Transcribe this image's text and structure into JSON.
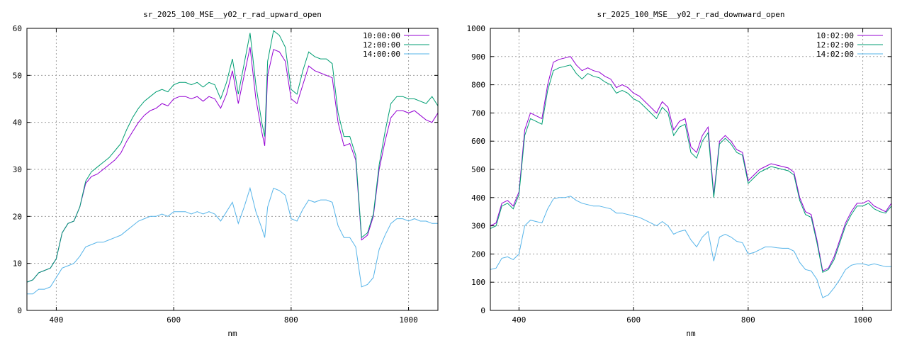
{
  "chart_data": [
    {
      "type": "line",
      "title": "sr_2025_100_MSE__y02_r_rad_upward_open",
      "xlabel": "nm",
      "ylabel": "",
      "xlim": [
        350,
        1050
      ],
      "ylim": [
        0,
        60
      ],
      "xticks": [
        400,
        600,
        800,
        1000
      ],
      "yticks": [
        0,
        10,
        20,
        30,
        40,
        50,
        60
      ],
      "grid": true,
      "legend_position": "top-right",
      "series": [
        {
          "name": "10:00:00",
          "color": "#9400d3",
          "x": [
            350,
            360,
            370,
            380,
            390,
            400,
            410,
            420,
            430,
            440,
            450,
            460,
            470,
            480,
            490,
            500,
            510,
            520,
            530,
            540,
            550,
            560,
            570,
            580,
            590,
            600,
            610,
            620,
            630,
            640,
            650,
            660,
            670,
            680,
            690,
            700,
            710,
            720,
            730,
            740,
            750,
            755,
            760,
            770,
            780,
            790,
            800,
            810,
            820,
            830,
            840,
            850,
            860,
            870,
            880,
            890,
            900,
            910,
            920,
            930,
            940,
            950,
            960,
            970,
            980,
            990,
            1000,
            1010,
            1020,
            1030,
            1040,
            1050
          ],
          "y": [
            6.0,
            6.5,
            8.0,
            8.5,
            9.0,
            11.0,
            16.5,
            18.5,
            19.0,
            22.0,
            27.0,
            28.5,
            29.0,
            30.0,
            31.0,
            32.0,
            33.5,
            36.0,
            38.0,
            40.0,
            41.5,
            42.5,
            43.0,
            44.0,
            43.5,
            45.0,
            45.5,
            45.5,
            45.0,
            45.5,
            44.5,
            45.5,
            45.0,
            43.0,
            46.0,
            51.0,
            44.0,
            50.0,
            56.0,
            45.0,
            38.0,
            35.0,
            50.0,
            55.5,
            55.0,
            53.0,
            45.0,
            44.0,
            48.0,
            52.0,
            51.0,
            50.5,
            50.0,
            49.5,
            40.0,
            35.0,
            35.5,
            32.0,
            15.0,
            16.0,
            20.0,
            30.0,
            36.0,
            41.0,
            42.5,
            42.5,
            42.0,
            42.5,
            41.5,
            40.5,
            40.0,
            42.0
          ]
        },
        {
          "name": "12:00:00",
          "color": "#009e73",
          "x": [
            350,
            360,
            370,
            380,
            390,
            400,
            410,
            420,
            430,
            440,
            450,
            460,
            470,
            480,
            490,
            500,
            510,
            520,
            530,
            540,
            550,
            560,
            570,
            580,
            590,
            600,
            610,
            620,
            630,
            640,
            650,
            660,
            670,
            680,
            690,
            700,
            710,
            720,
            730,
            740,
            750,
            755,
            760,
            770,
            780,
            790,
            800,
            810,
            820,
            830,
            840,
            850,
            860,
            870,
            880,
            890,
            900,
            910,
            920,
            930,
            940,
            950,
            960,
            970,
            980,
            990,
            1000,
            1010,
            1020,
            1030,
            1040,
            1050
          ],
          "y": [
            6.0,
            6.5,
            8.0,
            8.5,
            9.0,
            11.0,
            16.5,
            18.5,
            19.0,
            22.0,
            27.5,
            29.5,
            30.5,
            31.5,
            32.5,
            34.0,
            35.5,
            38.5,
            41.0,
            43.0,
            44.5,
            45.5,
            46.5,
            47.0,
            46.5,
            48.0,
            48.5,
            48.5,
            48.0,
            48.5,
            47.5,
            48.5,
            48.0,
            45.0,
            48.5,
            53.5,
            46.0,
            52.5,
            59.0,
            48.0,
            40.0,
            37.0,
            53.0,
            59.5,
            58.5,
            56.0,
            47.0,
            46.0,
            51.0,
            55.0,
            54.0,
            53.5,
            53.5,
            52.5,
            42.0,
            37.0,
            37.0,
            33.0,
            15.5,
            16.5,
            20.5,
            31.0,
            38.0,
            44.0,
            45.5,
            45.5,
            45.0,
            45.0,
            44.5,
            44.0,
            45.5,
            43.5
          ]
        },
        {
          "name": "14:00:00",
          "color": "#56b4e9",
          "x": [
            350,
            360,
            370,
            380,
            390,
            400,
            410,
            420,
            430,
            440,
            450,
            460,
            470,
            480,
            490,
            500,
            510,
            520,
            530,
            540,
            550,
            560,
            570,
            580,
            590,
            600,
            610,
            620,
            630,
            640,
            650,
            660,
            670,
            680,
            690,
            700,
            710,
            720,
            730,
            740,
            750,
            755,
            760,
            770,
            780,
            790,
            800,
            810,
            820,
            830,
            840,
            850,
            860,
            870,
            880,
            890,
            900,
            910,
            920,
            930,
            940,
            950,
            960,
            970,
            980,
            990,
            1000,
            1010,
            1020,
            1030,
            1040,
            1050
          ],
          "y": [
            3.5,
            3.5,
            4.5,
            4.5,
            5.0,
            7.0,
            9.0,
            9.5,
            10.0,
            11.5,
            13.5,
            14.0,
            14.5,
            14.5,
            15.0,
            15.5,
            16.0,
            17.0,
            18.0,
            19.0,
            19.5,
            20.0,
            20.0,
            20.5,
            20.0,
            21.0,
            21.0,
            21.0,
            20.5,
            21.0,
            20.5,
            21.0,
            20.5,
            19.0,
            21.0,
            23.0,
            18.5,
            22.0,
            26.0,
            21.0,
            17.5,
            15.5,
            22.0,
            26.0,
            25.5,
            24.5,
            19.5,
            19.0,
            21.5,
            23.5,
            23.0,
            23.5,
            23.5,
            23.0,
            18.0,
            15.5,
            15.5,
            13.5,
            5.0,
            5.5,
            7.0,
            13.0,
            16.0,
            18.5,
            19.5,
            19.5,
            19.0,
            19.5,
            19.0,
            19.0,
            18.5,
            18.5
          ]
        }
      ]
    },
    {
      "type": "line",
      "title": "sr_2025_100_MSE__y02_r_rad_downward_open",
      "xlabel": "nm",
      "ylabel": "",
      "xlim": [
        350,
        1050
      ],
      "ylim": [
        0,
        1000
      ],
      "xticks": [
        400,
        600,
        800,
        1000
      ],
      "yticks": [
        0,
        100,
        200,
        300,
        400,
        500,
        600,
        700,
        800,
        900,
        1000
      ],
      "grid": true,
      "legend_position": "top-right",
      "series": [
        {
          "name": "10:02:00",
          "color": "#9400d3",
          "x": [
            350,
            360,
            370,
            380,
            390,
            400,
            410,
            420,
            430,
            440,
            450,
            460,
            470,
            480,
            490,
            500,
            510,
            520,
            530,
            540,
            550,
            560,
            570,
            580,
            590,
            600,
            610,
            620,
            630,
            640,
            650,
            660,
            670,
            680,
            690,
            700,
            710,
            720,
            730,
            740,
            750,
            760,
            770,
            780,
            790,
            800,
            810,
            820,
            830,
            840,
            850,
            860,
            870,
            880,
            890,
            900,
            910,
            920,
            930,
            940,
            950,
            960,
            970,
            980,
            990,
            1000,
            1010,
            1020,
            1030,
            1040,
            1050
          ],
          "y": [
            300,
            310,
            380,
            390,
            370,
            420,
            640,
            700,
            690,
            680,
            800,
            880,
            890,
            895,
            900,
            870,
            850,
            860,
            850,
            845,
            830,
            820,
            790,
            800,
            790,
            770,
            760,
            740,
            720,
            700,
            740,
            720,
            640,
            670,
            680,
            580,
            560,
            620,
            650,
            410,
            600,
            620,
            600,
            570,
            560,
            460,
            480,
            500,
            510,
            520,
            515,
            510,
            505,
            490,
            400,
            350,
            340,
            250,
            140,
            150,
            190,
            250,
            310,
            350,
            380,
            380,
            390,
            370,
            360,
            350,
            380
          ]
        },
        {
          "name": "12:02:00",
          "color": "#009e73",
          "x": [
            350,
            360,
            370,
            380,
            390,
            400,
            410,
            420,
            430,
            440,
            450,
            460,
            470,
            480,
            490,
            500,
            510,
            520,
            530,
            540,
            550,
            560,
            570,
            580,
            590,
            600,
            610,
            620,
            630,
            640,
            650,
            660,
            670,
            680,
            690,
            700,
            710,
            720,
            730,
            740,
            750,
            760,
            770,
            780,
            790,
            800,
            810,
            820,
            830,
            840,
            850,
            860,
            870,
            880,
            890,
            900,
            910,
            920,
            930,
            940,
            950,
            960,
            970,
            980,
            990,
            1000,
            1010,
            1020,
            1030,
            1040,
            1050
          ],
          "y": [
            290,
            300,
            370,
            380,
            360,
            410,
            620,
            680,
            670,
            660,
            780,
            850,
            860,
            865,
            870,
            840,
            820,
            840,
            830,
            825,
            810,
            800,
            770,
            780,
            770,
            750,
            740,
            720,
            700,
            680,
            720,
            700,
            620,
            650,
            660,
            560,
            540,
            600,
            630,
            400,
            590,
            610,
            590,
            560,
            550,
            450,
            470,
            490,
            500,
            510,
            505,
            500,
            495,
            480,
            390,
            340,
            330,
            240,
            135,
            145,
            180,
            240,
            300,
            340,
            370,
            370,
            380,
            360,
            350,
            345,
            370
          ]
        },
        {
          "name": "14:02:00",
          "color": "#56b4e9",
          "x": [
            350,
            360,
            370,
            380,
            390,
            400,
            410,
            420,
            430,
            440,
            450,
            460,
            470,
            480,
            490,
            500,
            510,
            520,
            530,
            540,
            550,
            560,
            570,
            580,
            590,
            600,
            610,
            620,
            630,
            640,
            650,
            660,
            670,
            680,
            690,
            700,
            710,
            720,
            730,
            740,
            750,
            760,
            770,
            780,
            790,
            800,
            810,
            820,
            830,
            840,
            850,
            860,
            870,
            880,
            890,
            900,
            910,
            920,
            930,
            940,
            950,
            960,
            970,
            980,
            990,
            1000,
            1010,
            1020,
            1030,
            1040,
            1050
          ],
          "y": [
            145,
            150,
            185,
            190,
            180,
            200,
            300,
            320,
            315,
            310,
            360,
            395,
            400,
            400,
            405,
            390,
            380,
            375,
            370,
            370,
            365,
            360,
            345,
            345,
            340,
            335,
            330,
            320,
            310,
            300,
            315,
            300,
            270,
            280,
            285,
            250,
            225,
            260,
            280,
            175,
            260,
            270,
            260,
            245,
            240,
            200,
            205,
            215,
            225,
            225,
            222,
            220,
            220,
            210,
            170,
            145,
            140,
            110,
            45,
            55,
            80,
            110,
            145,
            160,
            165,
            165,
            160,
            165,
            160,
            155,
            155
          ]
        }
      ]
    }
  ]
}
